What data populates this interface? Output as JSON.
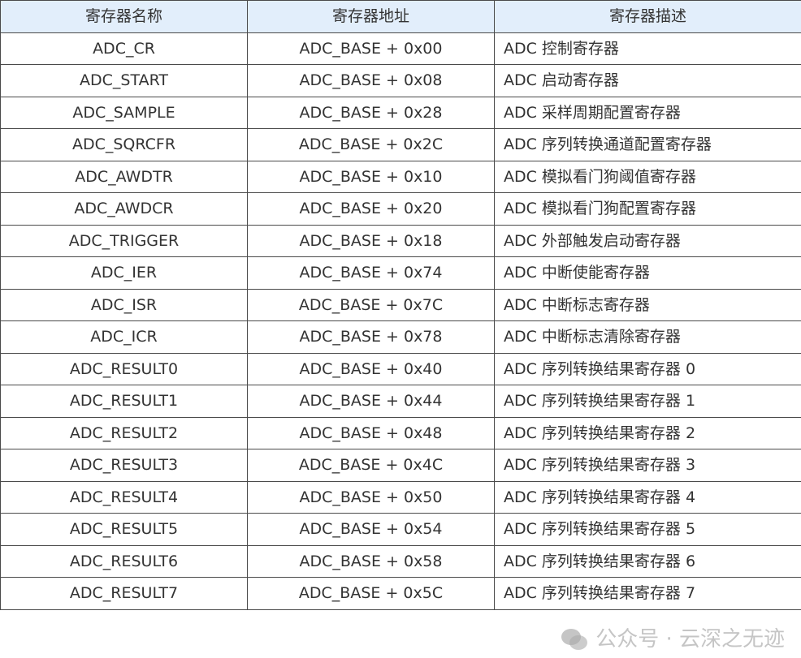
{
  "headers": [
    "寄存器名称",
    "寄存器地址",
    "寄存器描述"
  ],
  "rows": [
    [
      "ADC_CR",
      "ADC_BASE + 0x00",
      "ADC 控制寄存器"
    ],
    [
      "ADC_START",
      "ADC_BASE + 0x08",
      "ADC 启动寄存器"
    ],
    [
      "ADC_SAMPLE",
      "ADC_BASE + 0x28",
      "ADC 采样周期配置寄存器"
    ],
    [
      "ADC_SQRCFR",
      "ADC_BASE + 0x2C",
      "ADC 序列转换通道配置寄存器"
    ],
    [
      "ADC_AWDTR",
      "ADC_BASE + 0x10",
      "ADC 模拟看门狗阈值寄存器"
    ],
    [
      "ADC_AWDCR",
      "ADC_BASE + 0x20",
      "ADC 模拟看门狗配置寄存器"
    ],
    [
      "ADC_TRIGGER",
      "ADC_BASE + 0x18",
      "ADC 外部触发启动寄存器"
    ],
    [
      "ADC_IER",
      "ADC_BASE + 0x74",
      "ADC 中断使能寄存器"
    ],
    [
      "ADC_ISR",
      "ADC_BASE + 0x7C",
      "ADC 中断标志寄存器"
    ],
    [
      "ADC_ICR",
      "ADC_BASE + 0x78",
      "ADC 中断标志清除寄存器"
    ],
    [
      "ADC_RESULT0",
      "ADC_BASE + 0x40",
      "ADC 序列转换结果寄存器 0"
    ],
    [
      "ADC_RESULT1",
      "ADC_BASE + 0x44",
      "ADC 序列转换结果寄存器 1"
    ],
    [
      "ADC_RESULT2",
      "ADC_BASE + 0x48",
      "ADC 序列转换结果寄存器 2"
    ],
    [
      "ADC_RESULT3",
      "ADC_BASE + 0x4C",
      "ADC 序列转换结果寄存器 3"
    ],
    [
      "ADC_RESULT4",
      "ADC_BASE + 0x50",
      "ADC 序列转换结果寄存器 4"
    ],
    [
      "ADC_RESULT5",
      "ADC_BASE + 0x54",
      "ADC 序列转换结果寄存器 5"
    ],
    [
      "ADC_RESULT6",
      "ADC_BASE + 0x58",
      "ADC 序列转换结果寄存器 6"
    ],
    [
      "ADC_RESULT7",
      "ADC_BASE + 0x5C",
      "ADC 序列转换结果寄存器 7"
    ]
  ],
  "watermark": {
    "text": "公众号 · 云深之无迹",
    "icon": "wechat-icon"
  },
  "colors": {
    "header_bg": "#e2eefb",
    "border": "#4a4a4a"
  }
}
